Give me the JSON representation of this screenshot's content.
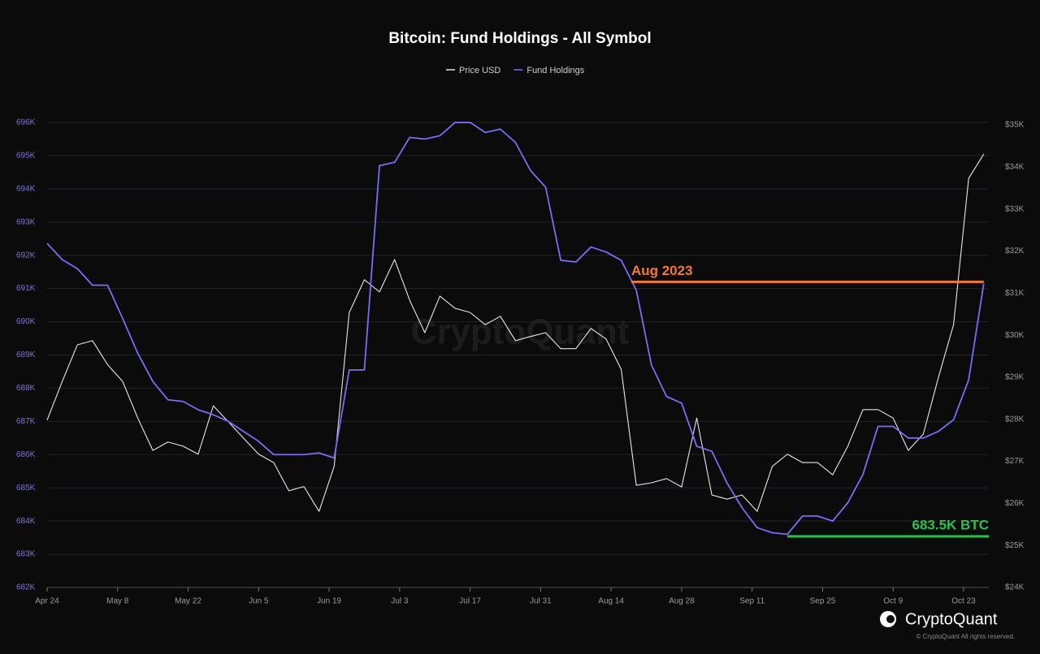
{
  "chart_data": {
    "type": "line",
    "title": "Bitcoin: Fund Holdings - All Symbol",
    "watermark": "CryptoQuant",
    "brand": "CryptoQuant",
    "copyright": "© CryptoQuant All rights reserved.",
    "x": [
      0,
      3,
      6,
      9,
      12,
      15,
      18,
      21,
      24,
      27,
      30,
      33,
      36,
      39,
      42,
      45,
      48,
      51,
      54,
      57,
      60,
      63,
      66,
      69,
      72,
      75,
      78,
      81,
      84,
      87,
      90,
      93,
      96,
      99,
      102,
      105,
      108,
      111,
      114,
      117,
      120,
      123,
      126,
      129,
      132,
      135,
      138,
      141,
      144,
      147,
      150,
      153,
      156,
      159,
      162,
      165,
      168,
      171,
      174,
      177,
      180,
      183,
      186
    ],
    "xlim": [
      0,
      187
    ],
    "xticks": [
      {
        "value": 0,
        "label": "Apr 24"
      },
      {
        "value": 14,
        "label": "May 8"
      },
      {
        "value": 28,
        "label": "May 22"
      },
      {
        "value": 42,
        "label": "Jun 5"
      },
      {
        "value": 56,
        "label": "Jun 19"
      },
      {
        "value": 70,
        "label": "Jul 3"
      },
      {
        "value": 84,
        "label": "Jul 17"
      },
      {
        "value": 98,
        "label": "Jul 31"
      },
      {
        "value": 112,
        "label": "Aug 14"
      },
      {
        "value": 126,
        "label": "Aug 28"
      },
      {
        "value": 140,
        "label": "Sep 11"
      },
      {
        "value": 154,
        "label": "Sep 25"
      },
      {
        "value": 168,
        "label": "Oct 9"
      },
      {
        "value": 182,
        "label": "Oct 23"
      }
    ],
    "ylim": [
      682000,
      697000
    ],
    "yticks": [
      {
        "value": 682000,
        "label": "682K"
      },
      {
        "value": 683000,
        "label": "683K"
      },
      {
        "value": 684000,
        "label": "684K"
      },
      {
        "value": 685000,
        "label": "685K"
      },
      {
        "value": 686000,
        "label": "686K"
      },
      {
        "value": 687000,
        "label": "687K"
      },
      {
        "value": 688000,
        "label": "688K"
      },
      {
        "value": 689000,
        "label": "689K"
      },
      {
        "value": 690000,
        "label": "690K"
      },
      {
        "value": 691000,
        "label": "691K"
      },
      {
        "value": 692000,
        "label": "692K"
      },
      {
        "value": 693000,
        "label": "693K"
      },
      {
        "value": 694000,
        "label": "694K"
      },
      {
        "value": 695000,
        "label": "695K"
      },
      {
        "value": 696000,
        "label": "696K"
      }
    ],
    "y2lim": [
      24000,
      35850
    ],
    "y2ticks": [
      {
        "value": 24000,
        "label": "$24K"
      },
      {
        "value": 25000,
        "label": "$25K"
      },
      {
        "value": 26000,
        "label": "$26K"
      },
      {
        "value": 27000,
        "label": "$27K"
      },
      {
        "value": 28000,
        "label": "$28K"
      },
      {
        "value": 29000,
        "label": "$29K"
      },
      {
        "value": 30000,
        "label": "$30K"
      },
      {
        "value": 31000,
        "label": "$31K"
      },
      {
        "value": 32000,
        "label": "$32K"
      },
      {
        "value": 33000,
        "label": "$33K"
      },
      {
        "value": 34000,
        "label": "$34K"
      },
      {
        "value": 35000,
        "label": "$35K"
      }
    ],
    "grid": true,
    "series": [
      {
        "name": "Price USD",
        "color": "#e8e8e8",
        "axis": "y2",
        "values": [
          27980,
          28900,
          29770,
          29870,
          29300,
          28900,
          28030,
          27260,
          27460,
          27360,
          27170,
          28320,
          27940,
          27550,
          27170,
          26970,
          26300,
          26400,
          25810,
          26880,
          30540,
          31320,
          31030,
          31800,
          30830,
          30060,
          30930,
          30640,
          30540,
          30250,
          30450,
          29870,
          29970,
          30060,
          29680,
          29680,
          30160,
          29910,
          29190,
          26430,
          26490,
          26590,
          26390,
          28030,
          26200,
          26100,
          26200,
          25810,
          26880,
          27170,
          26970,
          26970,
          26680,
          27360,
          28230,
          28230,
          28030,
          27260,
          27650,
          29000,
          30250,
          33730,
          34310
        ]
      },
      {
        "name": "Fund Holdings",
        "color": "#7b6cf6",
        "values": [
          692360,
          691870,
          691600,
          691100,
          691100,
          690100,
          689050,
          688200,
          687650,
          687600,
          687350,
          687200,
          687000,
          686700,
          686400,
          686000,
          686000,
          686000,
          686050,
          685900,
          688550,
          688550,
          694700,
          694800,
          695550,
          695500,
          695600,
          696000,
          696000,
          695700,
          695800,
          695400,
          694550,
          694050,
          691850,
          691800,
          692250,
          692100,
          691850,
          690950,
          688700,
          687750,
          687550,
          686250,
          686100,
          685150,
          684400,
          683800,
          683650,
          683600,
          684150,
          684150,
          684000,
          684550,
          685400,
          686850,
          686850,
          686500,
          686500,
          686700,
          687050,
          688250,
          691150
        ]
      }
    ],
    "annotations": [
      {
        "text": "Aug 2023",
        "value": 691200,
        "x": [
          116,
          186
        ],
        "color": "#f07a35"
      },
      {
        "text": "683.5K BTC",
        "value": 683540,
        "x": [
          147,
          187
        ],
        "color": "#27c44a"
      }
    ]
  }
}
